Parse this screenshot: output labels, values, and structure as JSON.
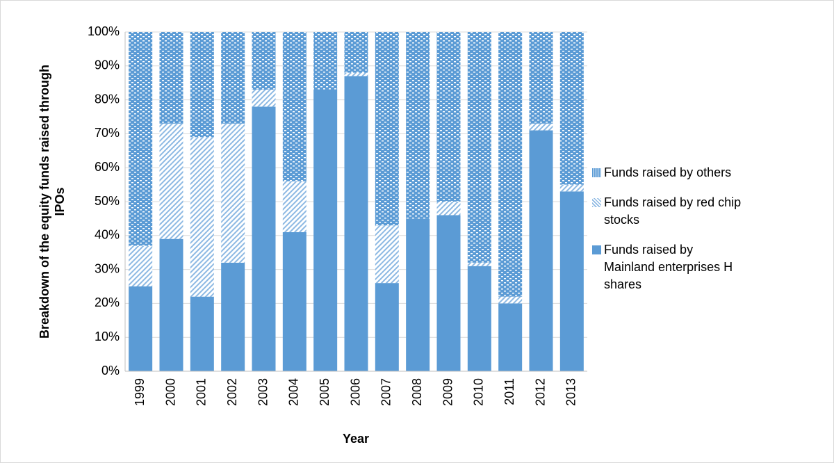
{
  "chart_data": {
    "type": "stacked_bar_100",
    "x_label": "Year",
    "y_label": "Breakdown of the equity funds raised through IPOs",
    "categories": [
      "1999",
      "2000",
      "2001",
      "2002",
      "2003",
      "2004",
      "2005",
      "2006",
      "2007",
      "2008",
      "2009",
      "2010",
      "2011",
      "2012",
      "2013"
    ],
    "series": [
      {
        "name": "Funds raised by Mainland enterprises H shares",
        "color": "#5b9bd5",
        "pattern": "solid",
        "values": [
          25,
          39,
          22,
          32,
          78,
          41,
          83,
          87,
          26,
          45,
          46,
          31,
          20,
          71,
          53
        ]
      },
      {
        "name": "Funds raised by red chip stocks",
        "color": "#5b9bd5",
        "pattern": "hatch",
        "values": [
          12,
          34,
          47,
          41,
          5,
          15,
          0,
          1,
          17,
          0,
          4,
          1,
          2,
          2,
          2
        ]
      },
      {
        "name": "Funds raised by others",
        "color": "#5b9bd5",
        "pattern": "checker",
        "values": [
          63,
          27,
          31,
          27,
          17,
          44,
          17,
          12,
          57,
          55,
          50,
          68,
          78,
          27,
          45
        ]
      }
    ],
    "ylim": [
      0,
      100
    ],
    "yticks": [
      {
        "value": 0,
        "label": "0%"
      },
      {
        "value": 10,
        "label": "10%"
      },
      {
        "value": 20,
        "label": "20%"
      },
      {
        "value": 30,
        "label": "30%"
      },
      {
        "value": 40,
        "label": "40%"
      },
      {
        "value": 50,
        "label": "50%"
      },
      {
        "value": 60,
        "label": "60%"
      },
      {
        "value": 70,
        "label": "70%"
      },
      {
        "value": 80,
        "label": "80%"
      },
      {
        "value": 90,
        "label": "90%"
      },
      {
        "value": 100,
        "label": "100%"
      }
    ],
    "grid": true,
    "legend": "right"
  }
}
